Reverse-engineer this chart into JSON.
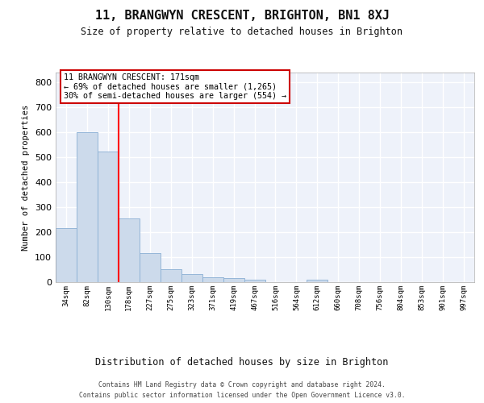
{
  "title": "11, BRANGWYN CRESCENT, BRIGHTON, BN1 8XJ",
  "subtitle": "Size of property relative to detached houses in Brighton",
  "xlabel": "Distribution of detached houses by size in Brighton",
  "ylabel": "Number of detached properties",
  "bar_color": "#ccdaeb",
  "bar_edge_color": "#8aafd4",
  "bar_heights": [
    218,
    600,
    522,
    256,
    115,
    53,
    32,
    20,
    16,
    11,
    0,
    0,
    10,
    0,
    0,
    0,
    0,
    0,
    0,
    0
  ],
  "bin_labels": [
    "34sqm",
    "82sqm",
    "130sqm",
    "178sqm",
    "227sqm",
    "275sqm",
    "323sqm",
    "371sqm",
    "419sqm",
    "467sqm",
    "516sqm",
    "564sqm",
    "612sqm",
    "660sqm",
    "708sqm",
    "756sqm",
    "804sqm",
    "853sqm",
    "901sqm",
    "997sqm"
  ],
  "ylim": [
    0,
    840
  ],
  "yticks": [
    0,
    100,
    200,
    300,
    400,
    500,
    600,
    700,
    800
  ],
  "red_line_x": 2.5,
  "annotation_line1": "11 BRANGWYN CRESCENT: 171sqm",
  "annotation_line2": "← 69% of detached houses are smaller (1,265)",
  "annotation_line3": "30% of semi-detached houses are larger (554) →",
  "annotation_box_color": "#ffffff",
  "annotation_box_edge": "#cc0000",
  "footer_line1": "Contains HM Land Registry data © Crown copyright and database right 2024.",
  "footer_line2": "Contains public sector information licensed under the Open Government Licence v3.0.",
  "bg_color": "#eef2fa",
  "grid_color": "#ffffff"
}
